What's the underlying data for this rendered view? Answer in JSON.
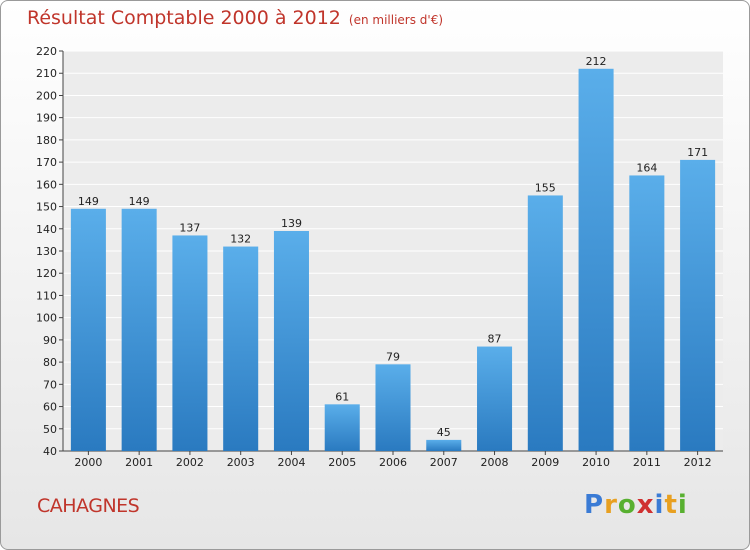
{
  "header": {
    "title": "Résultat Comptable 2000 à 2012",
    "subtitle": "(en milliers d'€)"
  },
  "footer": {
    "place": "CAHAGNES",
    "logo": "Proxiti"
  },
  "colors": {
    "title": "#c0352b",
    "bar_top": "#5aaeea",
    "bar_bottom": "#2a7ac0"
  },
  "chart_data": {
    "type": "bar",
    "title": "Résultat Comptable 2000 à 2012",
    "subtitle": "(en milliers d'€)",
    "categories": [
      "2000",
      "2001",
      "2002",
      "2003",
      "2004",
      "2005",
      "2006",
      "2007",
      "2008",
      "2009",
      "2010",
      "2011",
      "2012"
    ],
    "values": [
      149,
      149,
      137,
      132,
      139,
      61,
      79,
      45,
      87,
      155,
      212,
      164,
      171
    ],
    "ylim": [
      40,
      220
    ],
    "yticks": [
      40,
      50,
      60,
      70,
      80,
      90,
      100,
      110,
      120,
      130,
      140,
      150,
      160,
      170,
      180,
      190,
      200,
      210,
      220
    ],
    "grid": true,
    "data_labels": true
  }
}
